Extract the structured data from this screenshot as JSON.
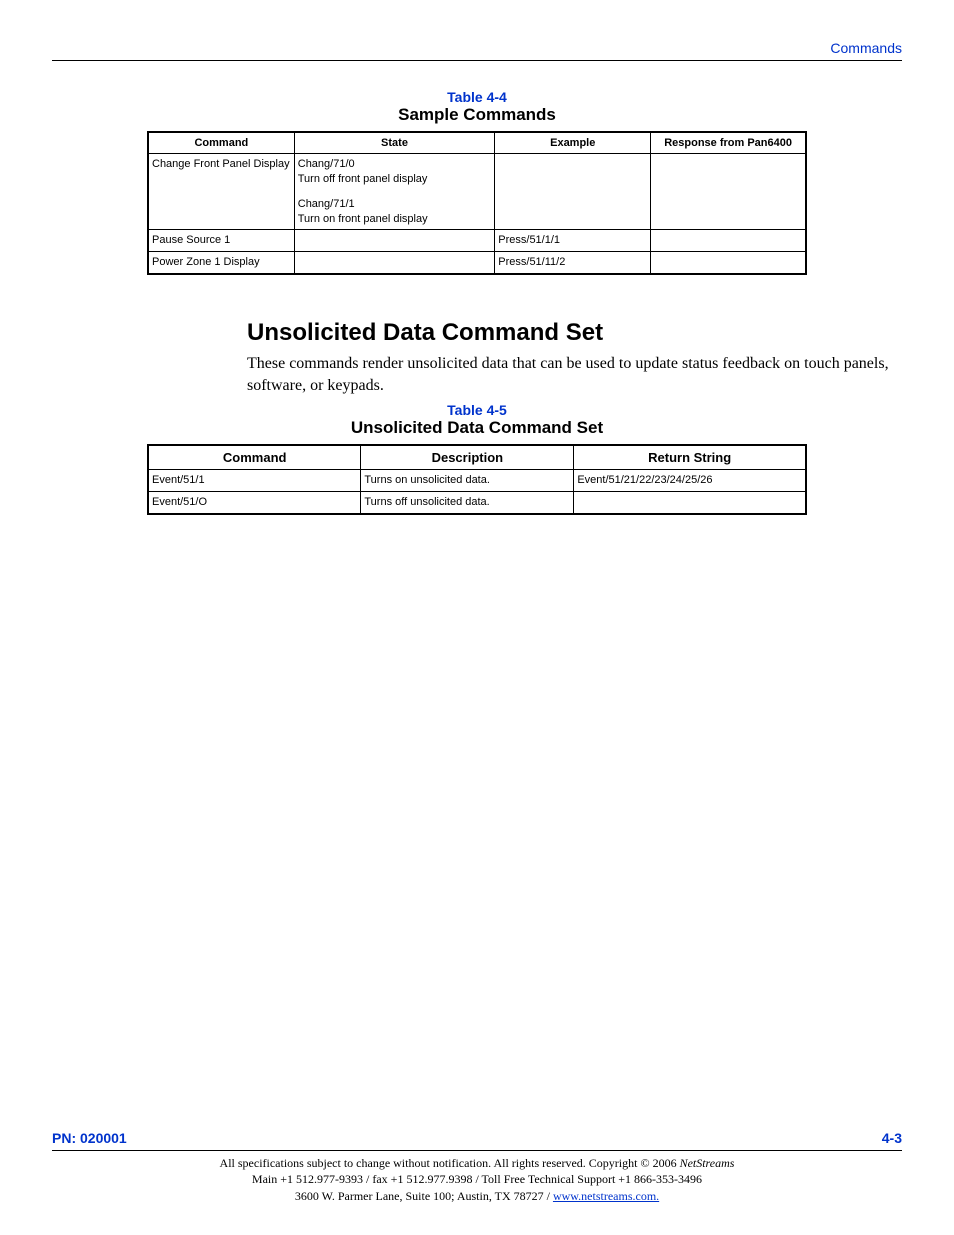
{
  "header": {
    "breadcrumb": "Commands"
  },
  "table1": {
    "label": "Table 4-4",
    "title": "Sample Commands",
    "columns": [
      "Command",
      "State",
      "Example",
      "Response from Pan6400"
    ],
    "rows": [
      {
        "command": "Change Front Panel Display",
        "state": "Chang/71/0\nTurn off front panel display\n\nChang/71/1\nTurn on front panel display",
        "example": "",
        "response": ""
      },
      {
        "command": "Pause Source 1",
        "state": "",
        "example": "Press/51/1/1",
        "response": ""
      },
      {
        "command": "Power Zone 1 Display",
        "state": "",
        "example": "Press/51/11/2",
        "response": ""
      }
    ]
  },
  "section": {
    "heading": "Unsolicited Data Command Set",
    "body": "These commands render unsolicited data that can be used to update status feedback on touch panels, software, or keypads."
  },
  "table2": {
    "label": "Table 4-5",
    "title": "Unsolicited Data Command Set",
    "columns": [
      "Command",
      "Description",
      "Return String"
    ],
    "rows": [
      {
        "command": "Event/51/1",
        "description": "Turns on unsolicited data.",
        "return": "Event/51/21/22/23/24/25/26"
      },
      {
        "command": "Event/51/O",
        "description": "Turns off unsolicited data.",
        "return": ""
      }
    ]
  },
  "footer": {
    "pn": "PN: 020001",
    "page": "4-3",
    "line1a": "All specifications subject to change without notification.  All rights reserved.  Copyright © 2006 ",
    "line1b": "NetStreams",
    "line2": "Main +1 512.977-9393 / fax +1 512.977.9398 / Toll Free Technical Support +1 866-353-3496",
    "line3a": "3600 W. Parmer Lane, Suite 100; Austin, TX 78727 / ",
    "link": "www.netstreams.com."
  }
}
